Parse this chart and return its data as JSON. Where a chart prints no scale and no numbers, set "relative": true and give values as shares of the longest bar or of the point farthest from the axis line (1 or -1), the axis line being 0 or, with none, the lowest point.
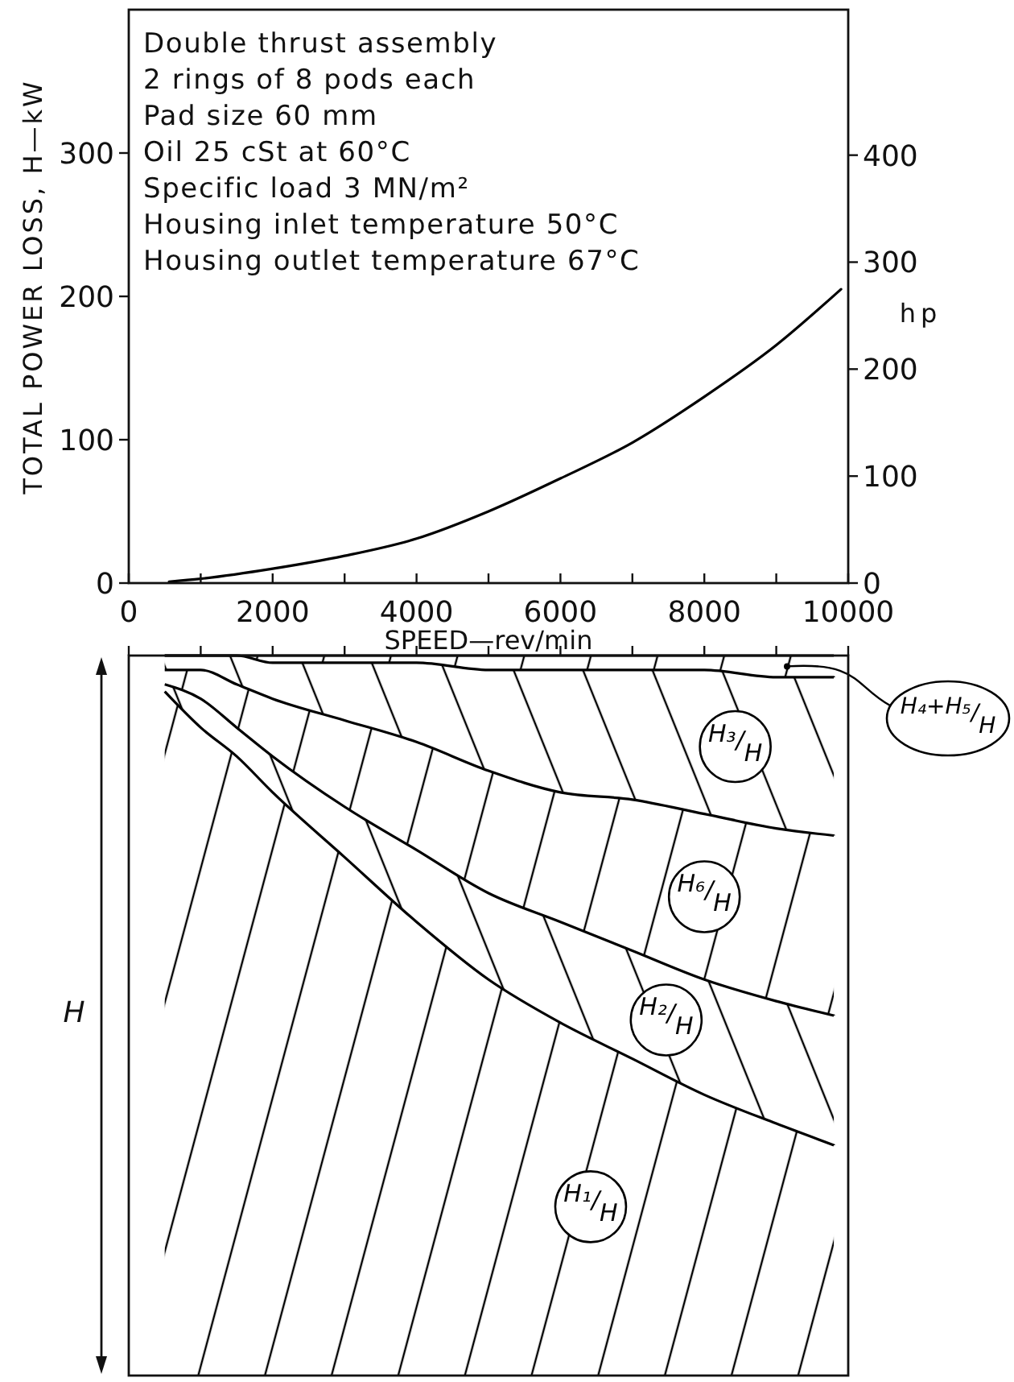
{
  "chart_data": [
    {
      "type": "line",
      "xlabel": "SPEED—rev/min",
      "ylabel": "TOTAL POWER LOSS, H—kW",
      "y2label": "hp",
      "annotations": [
        "Double thrust assembly",
        "2 rings of 8 pods each",
        "Pad size 60 mm",
        "Oil 25 cSt at 60°C",
        "Specific load 3 MN/m²",
        "Housing inlet temperature 50°C",
        "Housing outlet temperature 67°C"
      ],
      "x": [
        560,
        1000,
        2000,
        3000,
        4000,
        5000,
        6000,
        7000,
        8000,
        9000,
        9900
      ],
      "series": [
        {
          "color": "#000000",
          "values": [
            1,
            3,
            10,
            19,
            31,
            50,
            73,
            98,
            130,
            166,
            205
          ]
        }
      ],
      "xlim": [
        0,
        10000
      ],
      "xticks": [
        0,
        {
          "value": 1000,
          "label": null
        },
        2000,
        {
          "value": 3000,
          "label": null
        },
        4000,
        {
          "value": 5000,
          "label": null
        },
        6000,
        {
          "value": 7000,
          "label": null
        },
        8000,
        {
          "value": 9000,
          "label": null
        },
        10000
      ],
      "ylim": [
        0,
        400
      ],
      "yticks": [
        0,
        100,
        200,
        300
      ],
      "y2lim": [
        0,
        536
      ],
      "y2ticks": [
        0,
        100,
        200,
        300,
        400
      ],
      "line_style": "solid"
    },
    {
      "type": "area",
      "stacked": true,
      "relative": true,
      "ylabel": "H",
      "x": [
        500,
        1000,
        1500,
        2000,
        3000,
        4000,
        5000,
        6000,
        7000,
        8000,
        9000,
        9800
      ],
      "series": [
        {
          "name": "H₁/H",
          "color": "#000000",
          "values": [
            0.95,
            0.9,
            0.86,
            0.81,
            0.72,
            0.63,
            0.55,
            0.49,
            0.44,
            0.39,
            0.35,
            0.32
          ]
        },
        {
          "name": "H₂/H",
          "color": "#000000",
          "values": [
            0.01,
            0.04,
            0.04,
            0.05,
            0.07,
            0.1,
            0.12,
            0.14,
            0.15,
            0.16,
            0.17,
            0.18
          ]
        },
        {
          "name": "H₆/H",
          "color": "#000000",
          "values": [
            0.02,
            0.04,
            0.06,
            0.08,
            0.12,
            0.15,
            0.17,
            0.18,
            0.21,
            0.23,
            0.24,
            0.25
          ]
        },
        {
          "name": "H₃/H",
          "color": "#000000",
          "values": [
            0.02,
            0.02,
            0.04,
            0.05,
            0.08,
            0.11,
            0.14,
            0.17,
            0.18,
            0.2,
            0.21,
            0.22
          ]
        },
        {
          "name": "H₄+H₅/H",
          "color": "#000000",
          "values": [
            0,
            0,
            0,
            0.01,
            0.01,
            0.01,
            0.02,
            0.02,
            0.02,
            0.02,
            0.03,
            0.03
          ]
        }
      ],
      "xlim": [
        0,
        10000
      ],
      "xticks": [
        0,
        {
          "value": 1000,
          "label": null
        },
        2000,
        {
          "value": 3000,
          "label": null
        },
        4000,
        {
          "value": 5000,
          "label": null
        },
        6000,
        {
          "value": 7000,
          "label": null
        },
        8000,
        {
          "value": 9000,
          "label": null
        },
        10000
      ],
      "tick_labels": false
    }
  ]
}
